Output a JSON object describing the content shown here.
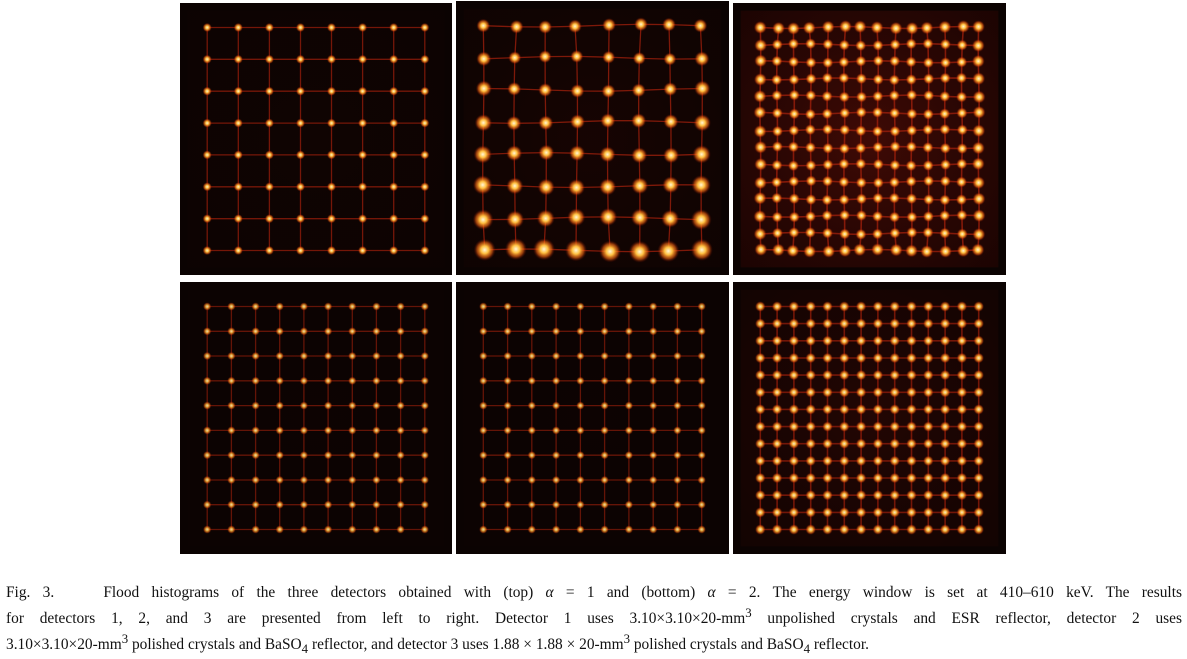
{
  "figure": {
    "panels": [
      {
        "row": "top",
        "alpha": 1,
        "detector": 1,
        "grid": 8,
        "cmap": "hot",
        "brightness": 0.85,
        "background_glow": 0.05,
        "edge_distortion": 0.0
      },
      {
        "row": "top",
        "alpha": 1,
        "detector": 2,
        "grid": 8,
        "cmap": "hot",
        "brightness": 1.0,
        "background_glow": 0.12,
        "edge_distortion": 0.35
      },
      {
        "row": "top",
        "alpha": 1,
        "detector": 3,
        "grid": 14,
        "cmap": "hot",
        "brightness": 1.0,
        "background_glow": 0.55,
        "edge_distortion": 0.25
      },
      {
        "row": "bottom",
        "alpha": 2,
        "detector": 1,
        "grid": 10,
        "cmap": "hot",
        "brightness": 0.6,
        "background_glow": 0.02,
        "edge_distortion": 0.0
      },
      {
        "row": "bottom",
        "alpha": 2,
        "detector": 2,
        "grid": 10,
        "cmap": "hot",
        "brightness": 0.6,
        "background_glow": 0.02,
        "edge_distortion": 0.0
      },
      {
        "row": "bottom",
        "alpha": 2,
        "detector": 3,
        "grid": 14,
        "cmap": "hot",
        "brightness": 0.8,
        "background_glow": 0.25,
        "edge_distortion": 0.0
      }
    ],
    "colors": {
      "background": "#0b0302",
      "grid_line": "#a3200c",
      "spot_core": "#fff6d8",
      "spot_glow": "#ff6a10"
    }
  },
  "caption": {
    "label": "Fig. 3.",
    "line1_a": "Flood histograms of the three detectors obtained with (top) ",
    "alpha_symbol": "α",
    "line1_b": " = 1 and (bottom) ",
    "line1_c": " = 2. The energy window is set at 410–610 keV. The results",
    "line2_a": "for detectors 1, 2, and 3 are presented from left to right. Detector 1 uses 3.10×3.10×20-mm",
    "exp3": "3",
    "line2_b": " unpolished crystals and ESR reflector, detector 2 uses",
    "line3_a": "3.10×3.10×20-mm",
    "line3_b": " polished crystals and BaSO",
    "sub4": "4",
    "line3_c": " reflector, and detector 3 uses 1.88 × 1.88 × 20-mm",
    "line3_d": " polished crystals and BaSO",
    "line3_e": " reflector."
  }
}
